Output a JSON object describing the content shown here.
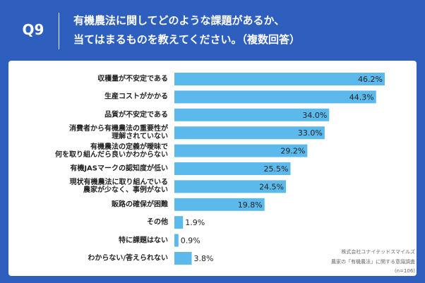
{
  "header": {
    "number": "Q9"
  },
  "chart_data": {
    "type": "bar",
    "orientation": "horizontal",
    "title": "有機農法に関してどのような課題があるか、\n当てはまるものを教えてください。（複数回答）",
    "categories": [
      "収穫量が不安定である",
      "生産コストがかかる",
      "品質が不安定である",
      "消費者から有機農法の重要性が\n理解されていない",
      "有機農法の定義が曖昧で\n何を取り組んだら良いかわからない",
      "有機JASマークの認知度が低い",
      "現状有機農法に取り組んでいる\n農家が少なく、事例がない",
      "販路の確保が困難",
      "その他",
      "特に課題はない",
      "わからない/答えられない"
    ],
    "values": [
      46.2,
      44.3,
      34.0,
      33.0,
      29.2,
      25.5,
      24.5,
      19.8,
      1.9,
      0.9,
      3.8
    ],
    "value_labels": [
      "46.2%",
      "44.3%",
      "34.0%",
      "33.0%",
      "29.2%",
      "25.5%",
      "24.5%",
      "19.8%",
      "1.9%",
      "0.9%",
      "3.8%"
    ],
    "color": "#5cb9ec"
  },
  "notes": [
    "株式会社ユナイテッドスマイルズ",
    "農家の「有機農法」に関する意識調査",
    "(n=106)"
  ]
}
